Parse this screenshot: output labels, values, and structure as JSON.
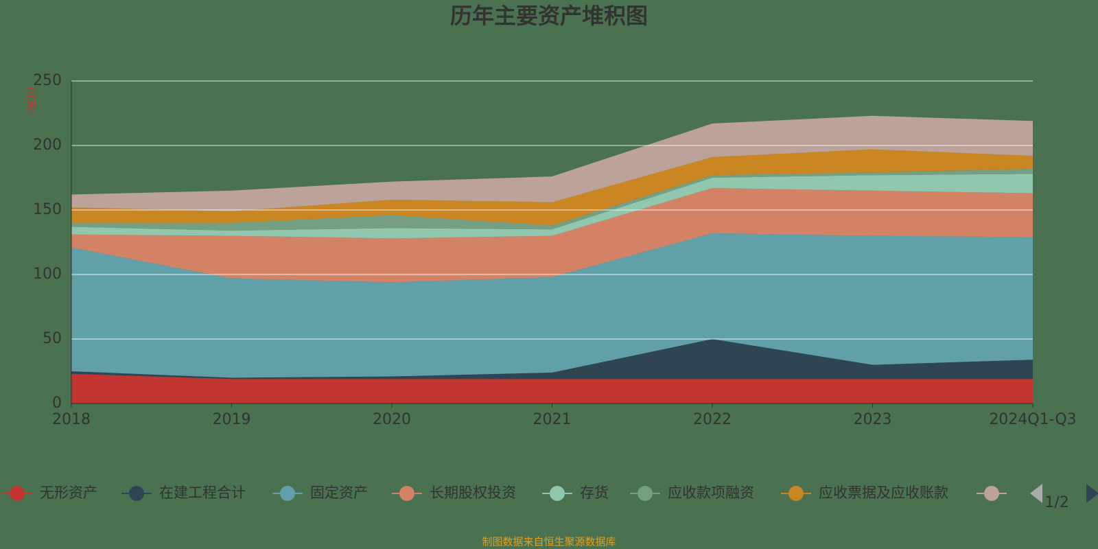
{
  "chart_data": {
    "type": "stacked_area",
    "title": "历年主要资产堆积图",
    "y_label": "(亿元)",
    "categories": [
      "2018",
      "2019",
      "2020",
      "2021",
      "2022",
      "2023",
      "2024Q1-Q3"
    ],
    "series": [
      {
        "name": "无形资产",
        "color": "#c23531",
        "values": [
          23,
          19,
          19,
          19,
          19,
          19,
          19
        ]
      },
      {
        "name": "在建工程合计",
        "color": "#2f4554",
        "values": [
          2,
          1,
          2,
          5,
          31,
          11,
          15
        ]
      },
      {
        "name": "固定资产",
        "color": "#61a0a8",
        "values": [
          96,
          77,
          73,
          74,
          82,
          100,
          95
        ]
      },
      {
        "name": "长期股权投资",
        "color": "#d48265",
        "values": [
          10,
          33,
          34,
          32,
          35,
          35,
          34
        ]
      },
      {
        "name": "存货",
        "color": "#91c7ae",
        "values": [
          6,
          4,
          8,
          5,
          8,
          12,
          15
        ]
      },
      {
        "name": "应收款项融资",
        "color": "#749f83",
        "values": [
          3,
          6,
          10,
          3,
          2,
          2,
          4
        ]
      },
      {
        "name": "应收票据及应收账款",
        "color": "#ca8622",
        "values": [
          12,
          9,
          12,
          18,
          14,
          18,
          10
        ]
      },
      {
        "color": "#bda29a",
        "values": [
          10,
          16,
          14,
          20,
          26,
          26,
          27
        ]
      }
    ],
    "ylim": [
      0,
      250
    ],
    "yticks": [
      0,
      50,
      100,
      150,
      200,
      250
    ],
    "grid": true,
    "legend_page": "1/2",
    "source": "制图数据来自恒生聚源数据库"
  }
}
